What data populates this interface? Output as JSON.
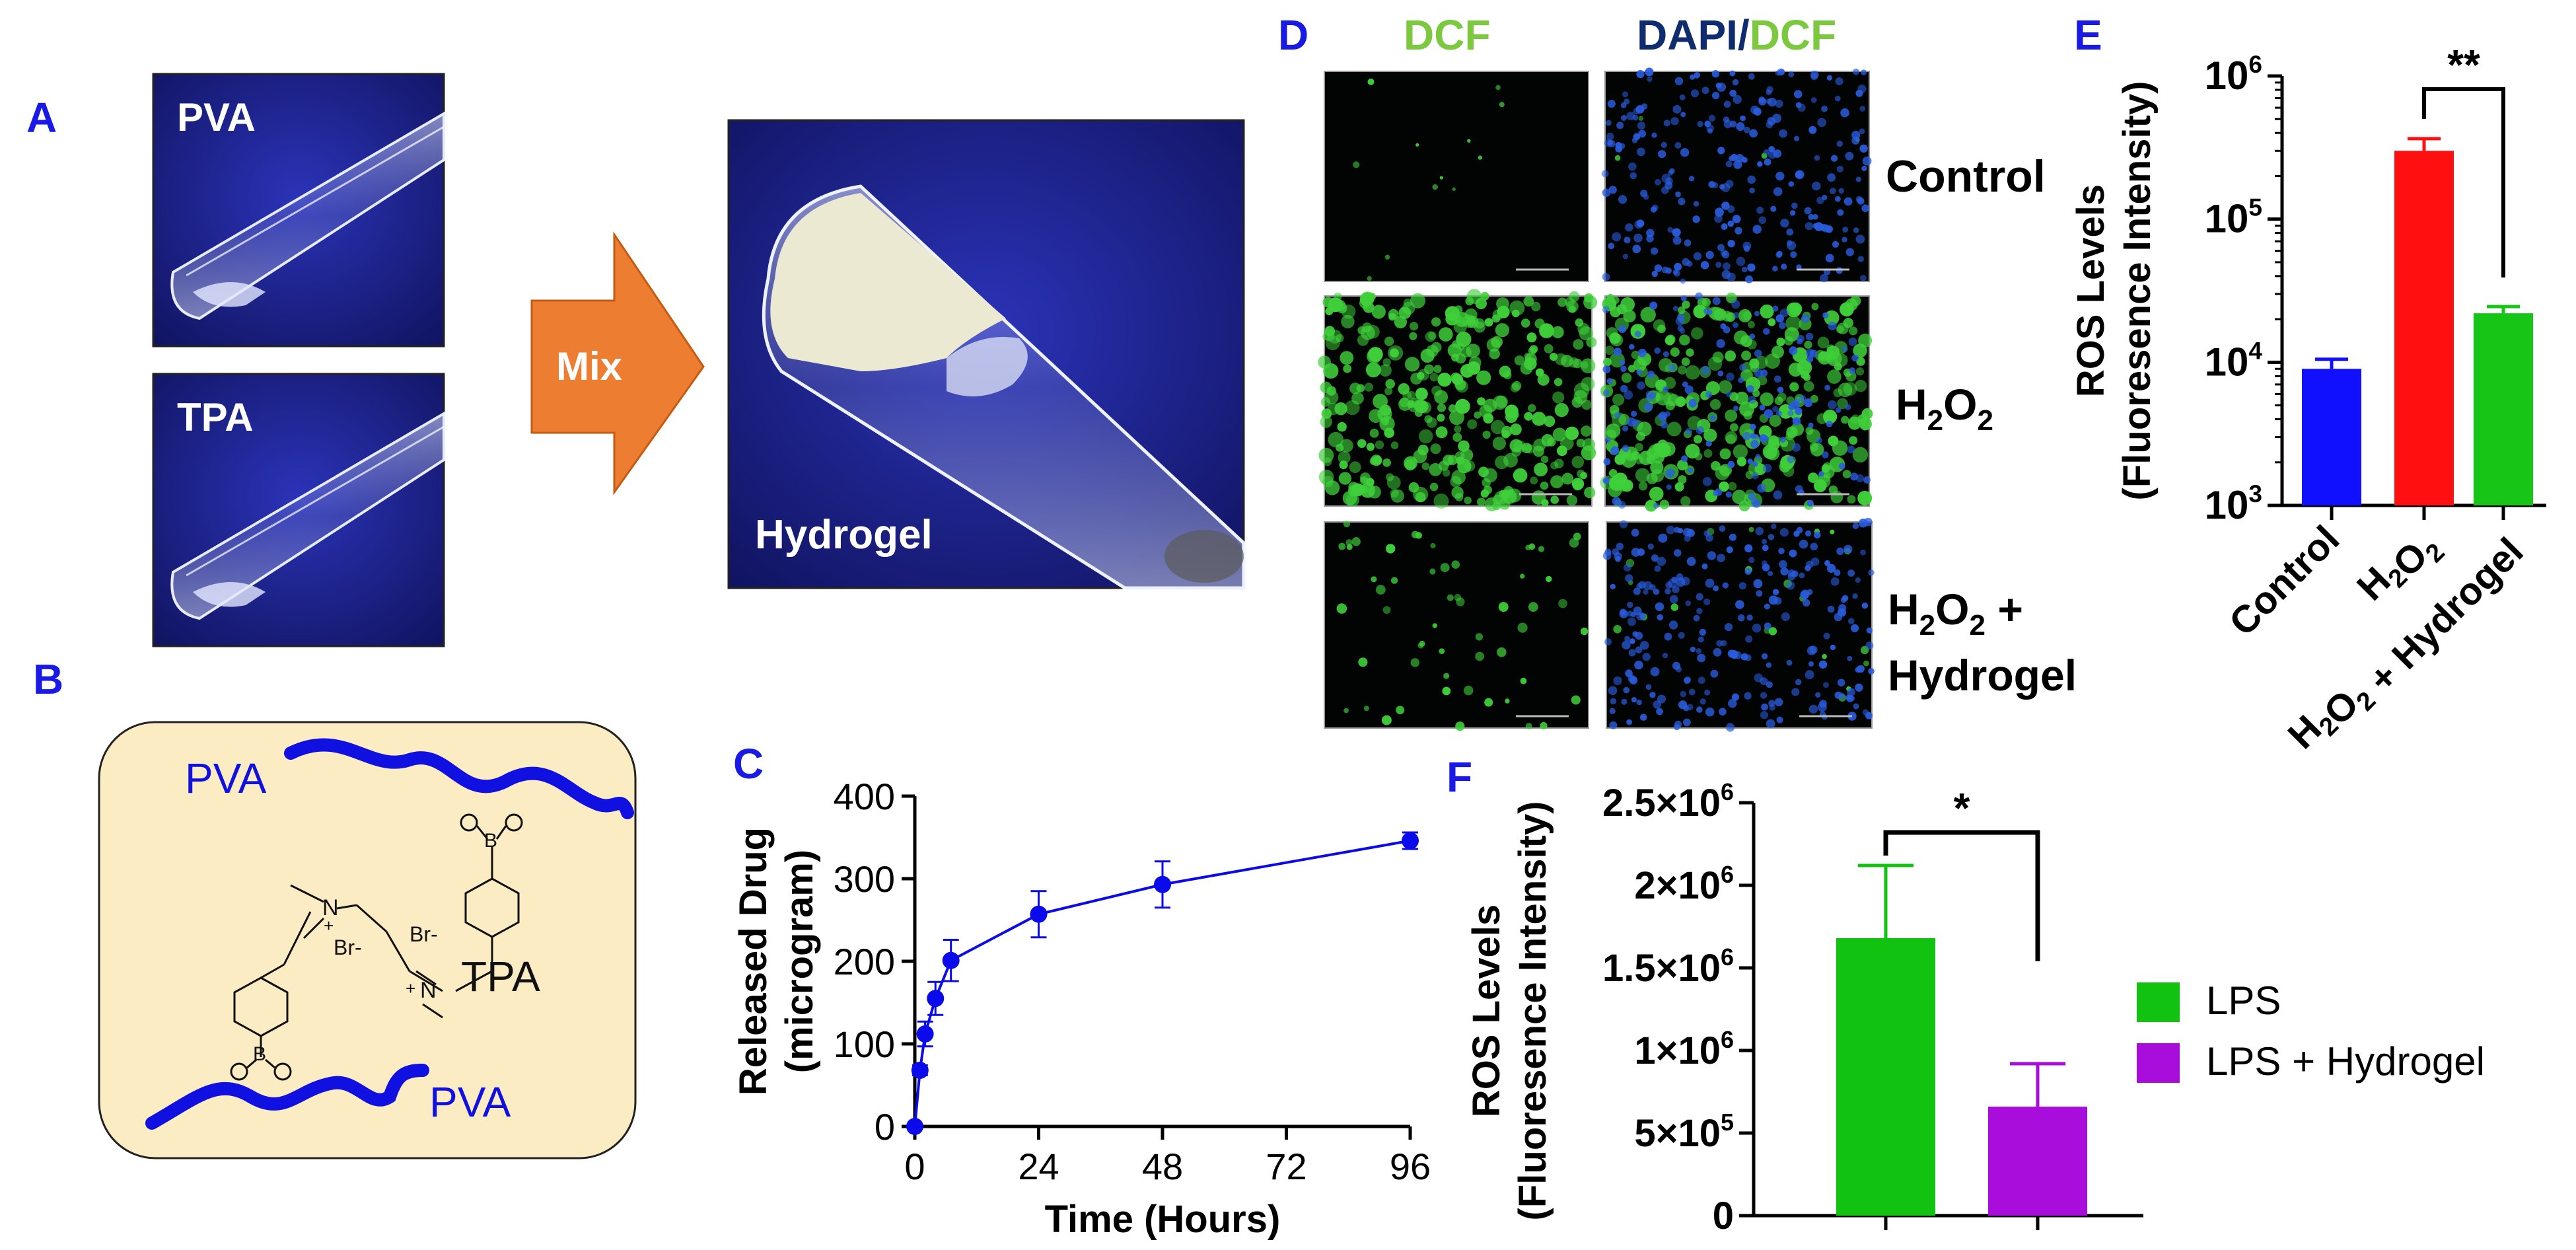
{
  "panel_labels": {
    "A": "A",
    "B": "B",
    "C": "C",
    "D": "D",
    "E": "E",
    "F": "F"
  },
  "colors": {
    "panel_label": "#1a1ae6",
    "photo_bg": "#1b1f8c",
    "arrow": "#ed7d31",
    "pva_chain": "#1010e0",
    "molecule_box": "#fcecc4",
    "series_blue": "#0a0aeb",
    "control": "#1010ff",
    "h2o2": "#ff0f0f",
    "hydrogel": "#16c516",
    "lps": "#11c211",
    "lps_hydrogel": "#a80ddb",
    "dcf": "#7cc940",
    "dapi": "#0f2d6e"
  },
  "panel_a": {
    "pva_label": "PVA",
    "tpa_label": "TPA",
    "arrow_label": "Mix",
    "hydrogel_label": "Hydrogel"
  },
  "panel_b": {
    "pva_top": "PVA",
    "pva_bottom": "PVA",
    "tpa": "TPA",
    "atoms": {
      "b": "B",
      "o": "O",
      "n": "N",
      "br": "Br-",
      "plus": "+"
    }
  },
  "panel_d": {
    "col_headers": [
      "DCF",
      "DAPI/DCF"
    ],
    "dapi_part": "DAPI",
    "slash": "/",
    "dcf_part": "DCF",
    "row_labels": {
      "control": "Control",
      "h2o2_base": "H",
      "h2o2_sub1": "2",
      "h2o2_mid": "O",
      "h2o2_sub2": "2",
      "plus": " +",
      "hydrogel": "Hydrogel"
    }
  },
  "chart_data": [
    {
      "id": "C",
      "type": "line",
      "xlabel": "Time (Hours)",
      "ylabel": "Released Drug",
      "ylabel2": "(microgram)",
      "x": [
        0,
        1,
        2,
        4,
        7,
        24,
        48,
        96
      ],
      "y": [
        0,
        68,
        112,
        155,
        201,
        257,
        293,
        346
      ],
      "err": [
        0,
        6,
        15,
        20,
        25,
        28,
        28,
        10
      ],
      "xlim": [
        0,
        96
      ],
      "xticks": [
        0,
        24,
        48,
        72,
        96
      ],
      "ylim": [
        0,
        400
      ],
      "yticks": [
        0,
        100,
        200,
        300,
        400
      ],
      "grid": false
    },
    {
      "id": "E",
      "type": "bar",
      "scale": "log",
      "ylabel": "ROS Levels",
      "ylabel2": "(Fluoresence  Intensity)",
      "categories": [
        "Control",
        "H2O2",
        "H2O2 + Hydrogel"
      ],
      "values": [
        9000,
        300000,
        22000
      ],
      "err_upper": [
        10500,
        365000,
        24500
      ],
      "ylim": [
        1000,
        1000000
      ],
      "yticks": [
        "10^3",
        "10^4",
        "10^5",
        "10^6"
      ],
      "significance": "**"
    },
    {
      "id": "F",
      "type": "bar",
      "ylabel": "ROS Levels",
      "ylabel2": "(Fluoresence  Intensity)",
      "categories": [
        "LPS",
        "LPS + Hydrogel"
      ],
      "values": [
        1680000,
        660000
      ],
      "err_upper": [
        2120000,
        920000
      ],
      "ylim": [
        0,
        2500000
      ],
      "yticks": [
        "0",
        "5×10^5",
        "1×10^6",
        "1.5×10^6",
        "2×10^6",
        "2.5×10^6"
      ],
      "legend": [
        "LPS",
        "LPS + Hydrogel"
      ],
      "legend_position": "right",
      "significance": "*"
    }
  ]
}
